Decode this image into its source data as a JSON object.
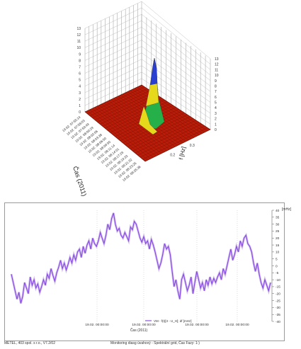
{
  "surface_chart": {
    "type": "surface",
    "axis_y_label": "Čas (2011)",
    "axis_x_label": "f [Hz]",
    "z_ticks": [
      "0",
      "1",
      "2",
      "3",
      "4",
      "5",
      "6",
      "7",
      "8",
      "9",
      "10",
      "11",
      "12",
      "13"
    ],
    "x_ticks": [
      "0.2",
      "0.3"
    ],
    "time_ticks": [
      "19.02. 07:55:14",
      "19.02. 07:58:03",
      "19.02. 07:59:49",
      "19.02. 08:00:29",
      "19.02. 08:02:06",
      "19.02. 08:03:38",
      "19.02. 08:06:50",
      "19.02. 08:09:50",
      "19.02. 08:11:14",
      "19.02. 08:14:01",
      "19.02. 08:17:29",
      "19.02. 08:19:33",
      "19.02. 08:21:32",
      "19.02. 08:23:25",
      "19.02. 08:25:36"
    ],
    "colors": {
      "floor": "#b91c08",
      "peak": "#2a3fd0",
      "mid": "#e6d81a",
      "low": "#26b04a"
    }
  },
  "chart_data": {
    "type": "line",
    "title": "",
    "xlabel": "Čas (2011)",
    "ylabel": "[mHz]",
    "x_ticks": [
      "19.02. 00:00:00",
      "19.02. 00:00:00",
      "19.02. 00:00:00",
      "19.02. 00:00:00"
    ],
    "ylim": [
      -40,
      40
    ],
    "y_ticks": [
      40,
      35,
      30,
      25,
      20,
      15,
      10,
      5,
      0,
      -5,
      -10,
      -15,
      -20,
      -25,
      -30,
      -35,
      -40
    ],
    "legend": "top-center-below-axis",
    "series": [
      {
        "name": "VM - f(t)[3 - U_H]; df [mHz]",
        "color": "#8a4fe0",
        "values": [
          -6,
          -12,
          -18,
          -24,
          -19,
          -27,
          -22,
          -12,
          -16,
          -20,
          -8,
          -14,
          -10,
          -16,
          -13,
          -19,
          -15,
          -10,
          -14,
          -6,
          -9,
          -2,
          -7,
          -11,
          -5,
          -1,
          4,
          -2,
          2,
          -3,
          1,
          6,
          2,
          8,
          4,
          10,
          12,
          6,
          14,
          9,
          15,
          18,
          12,
          20,
          16,
          14,
          18,
          24,
          20,
          16,
          22,
          30,
          26,
          34,
          38,
          30,
          25,
          27,
          22,
          20,
          24,
          21,
          18,
          28,
          26,
          32,
          30,
          25,
          20,
          17,
          21,
          16,
          18,
          12,
          19,
          15,
          10,
          4,
          -2,
          2,
          8,
          16,
          12,
          14,
          8,
          -4,
          -15,
          -10,
          -18,
          -24,
          -10,
          -6,
          -12,
          -18,
          -14,
          -8,
          -20,
          -12,
          -4,
          -10,
          -16,
          -12,
          -18,
          -10,
          -14,
          -8,
          -13,
          -9,
          -12,
          -8,
          -5,
          -10,
          -2,
          -6,
          0,
          6,
          12,
          4,
          8,
          14,
          10,
          18,
          14,
          20,
          22,
          16,
          14,
          10,
          2,
          -4,
          2,
          -6,
          -12,
          -16,
          -10,
          -14,
          -18,
          -12
        ]
      }
    ]
  },
  "footer": {
    "left": "METEL, 403 spol. s r.o., V7.2/02",
    "center": "Monitoring diasg úvahový - Spektrální grid, Čas Fazy: 1:)"
  }
}
